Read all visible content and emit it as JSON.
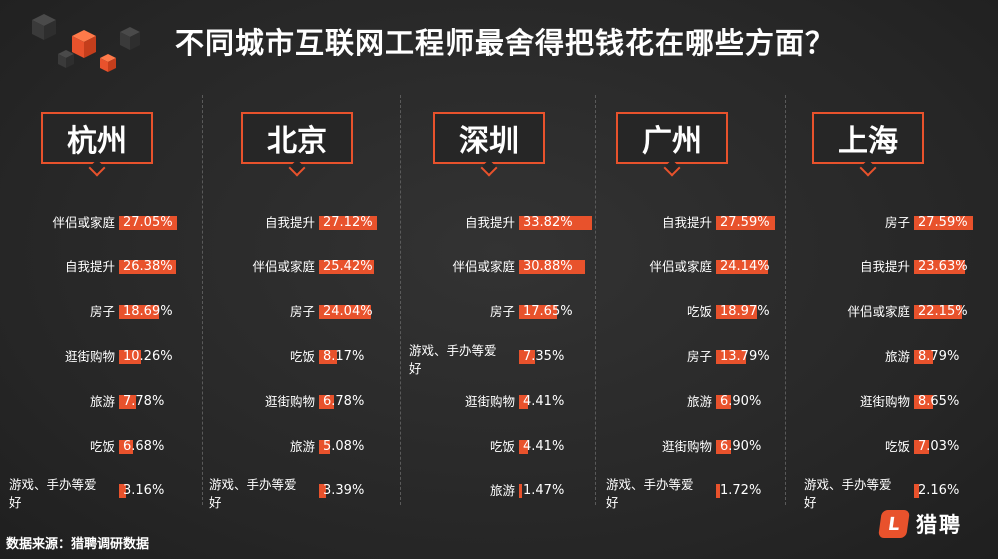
{
  "title": "不同城市互联网工程师最舍得把钱花在哪些方面？",
  "source": "数据来源：猎聘调研数据",
  "brand": {
    "icon_letter": "L",
    "name": "猎聘"
  },
  "colors": {
    "accent": "#e8522c",
    "background": "#262626"
  },
  "chart_data": [
    {
      "type": "bar",
      "title": "杭州",
      "categories": [
        "伴侣或家庭",
        "自我提升",
        "房子",
        "逛街购物",
        "旅游",
        "吃饭",
        "游戏、手办等爱好"
      ],
      "values": [
        27.05,
        26.38,
        18.69,
        10.26,
        7.78,
        6.68,
        3.16
      ],
      "labels": [
        "27.05%",
        "26.38%",
        "18.69%",
        "10.26%",
        "7.78%",
        "6.68%",
        "3.16%"
      ]
    },
    {
      "type": "bar",
      "title": "北京",
      "categories": [
        "自我提升",
        "伴侣或家庭",
        "房子",
        "吃饭",
        "逛街购物",
        "旅游",
        "游戏、手办等爱好"
      ],
      "values": [
        27.12,
        25.42,
        24.04,
        8.17,
        6.78,
        5.08,
        3.39
      ],
      "labels": [
        "27.12%",
        "25.42%",
        "24.04%",
        "8.17%",
        "6.78%",
        "5.08%",
        "3.39%"
      ]
    },
    {
      "type": "bar",
      "title": "深圳",
      "categories": [
        "自我提升",
        "伴侣或家庭",
        "房子",
        "游戏、手办等爱好",
        "逛街购物",
        "吃饭",
        "旅游"
      ],
      "values": [
        33.82,
        30.88,
        17.65,
        7.35,
        4.41,
        4.41,
        1.47
      ],
      "labels": [
        "33.82%",
        "30.88%",
        "17.65%",
        "7.35%",
        "4.41%",
        "4.41%",
        "1.47%"
      ]
    },
    {
      "type": "bar",
      "title": "广州",
      "categories": [
        "自我提升",
        "伴侣或家庭",
        "吃饭",
        "房子",
        "旅游",
        "逛街购物",
        "游戏、手办等爱好"
      ],
      "values": [
        27.59,
        24.14,
        18.97,
        13.79,
        6.9,
        6.9,
        1.72
      ],
      "labels": [
        "27.59%",
        "24.14%",
        "18.97%",
        "13.79%",
        "6.90%",
        "6.90%",
        "1.72%"
      ]
    },
    {
      "type": "bar",
      "title": "上海",
      "categories": [
        "房子",
        "自我提升",
        "伴侣或家庭",
        "旅游",
        "逛街购物",
        "吃饭",
        "游戏、手办等爱好"
      ],
      "values": [
        27.59,
        23.63,
        22.15,
        8.79,
        8.65,
        7.03,
        2.16
      ],
      "labels": [
        "27.59%",
        "23.63%",
        "22.15%",
        "8.79%",
        "8.65%",
        "7.03%",
        "2.16%"
      ]
    }
  ]
}
